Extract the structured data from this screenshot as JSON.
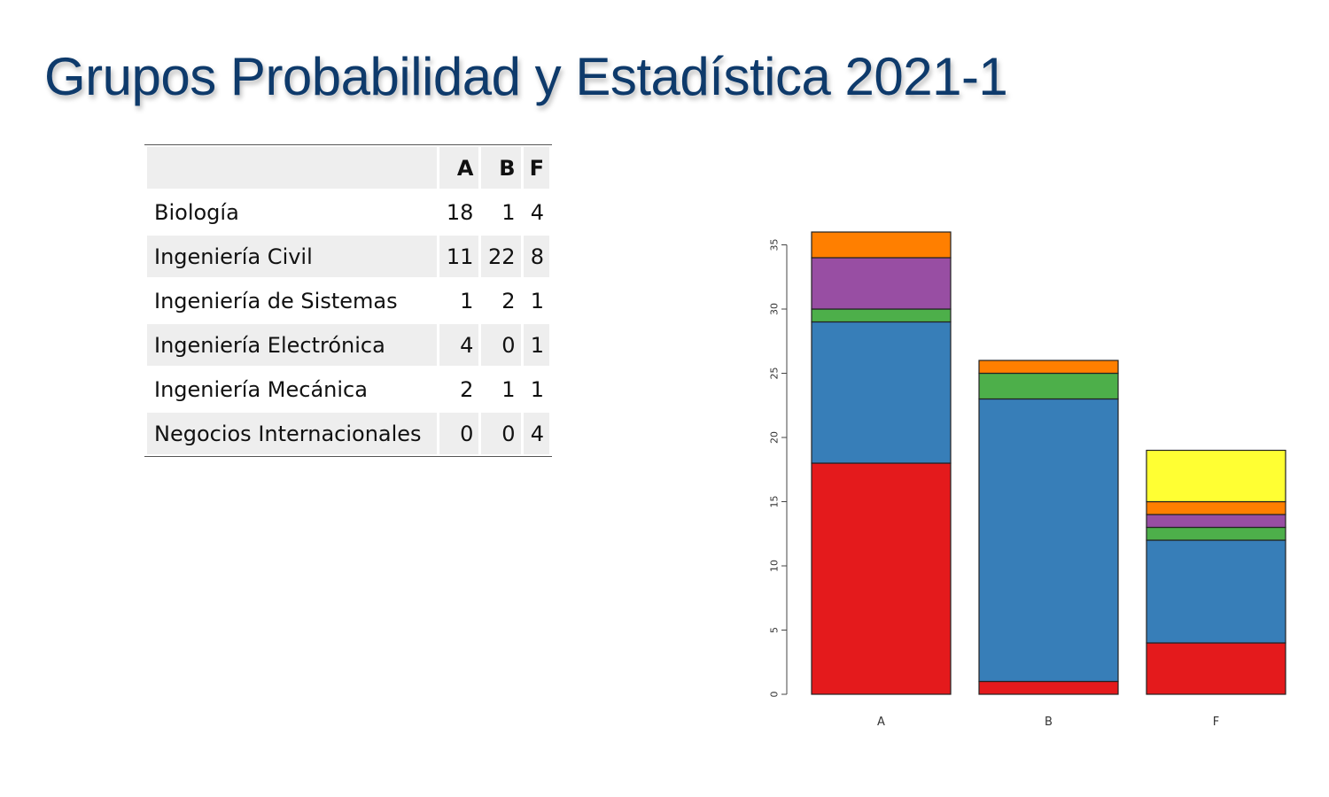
{
  "slide": {
    "title": "Grupos Probabilidad y Estadística 2021-1"
  },
  "table": {
    "columns": [
      "",
      "A",
      "B",
      "F"
    ],
    "rows": [
      {
        "name": "Biología",
        "values": [
          "18",
          "1",
          "4"
        ]
      },
      {
        "name": "Ingeniería Civil",
        "values": [
          "11",
          "22",
          "8"
        ]
      },
      {
        "name": "Ingeniería de Sistemas",
        "values": [
          "1",
          "2",
          "1"
        ]
      },
      {
        "name": "Ingeniería Electrónica",
        "values": [
          "4",
          "0",
          "1"
        ]
      },
      {
        "name": "Ingeniería Mecánica",
        "values": [
          "2",
          "1",
          "1"
        ]
      },
      {
        "name": "Negocios Internacionales",
        "values": [
          "0",
          "0",
          "4"
        ]
      }
    ]
  },
  "chart_data": {
    "type": "bar",
    "stacked": true,
    "categories": [
      "A",
      "B",
      "F"
    ],
    "series": [
      {
        "values": [
          18,
          1,
          4
        ],
        "color": "#e41a1c"
      },
      {
        "values": [
          11,
          22,
          8
        ],
        "color": "#377eb8"
      },
      {
        "values": [
          1,
          2,
          1
        ],
        "color": "#4daf4a"
      },
      {
        "values": [
          4,
          0,
          1
        ],
        "color": "#984ea3"
      },
      {
        "values": [
          2,
          1,
          1
        ],
        "color": "#ff7f00"
      },
      {
        "values": [
          0,
          0,
          4
        ],
        "color": "#ffff33"
      }
    ],
    "yticks": [
      0,
      5,
      10,
      15,
      20,
      25,
      30,
      35
    ],
    "ylim": [
      0,
      36
    ],
    "title": "",
    "xlabel": "",
    "ylabel": "",
    "grid": false,
    "legend": "none"
  }
}
